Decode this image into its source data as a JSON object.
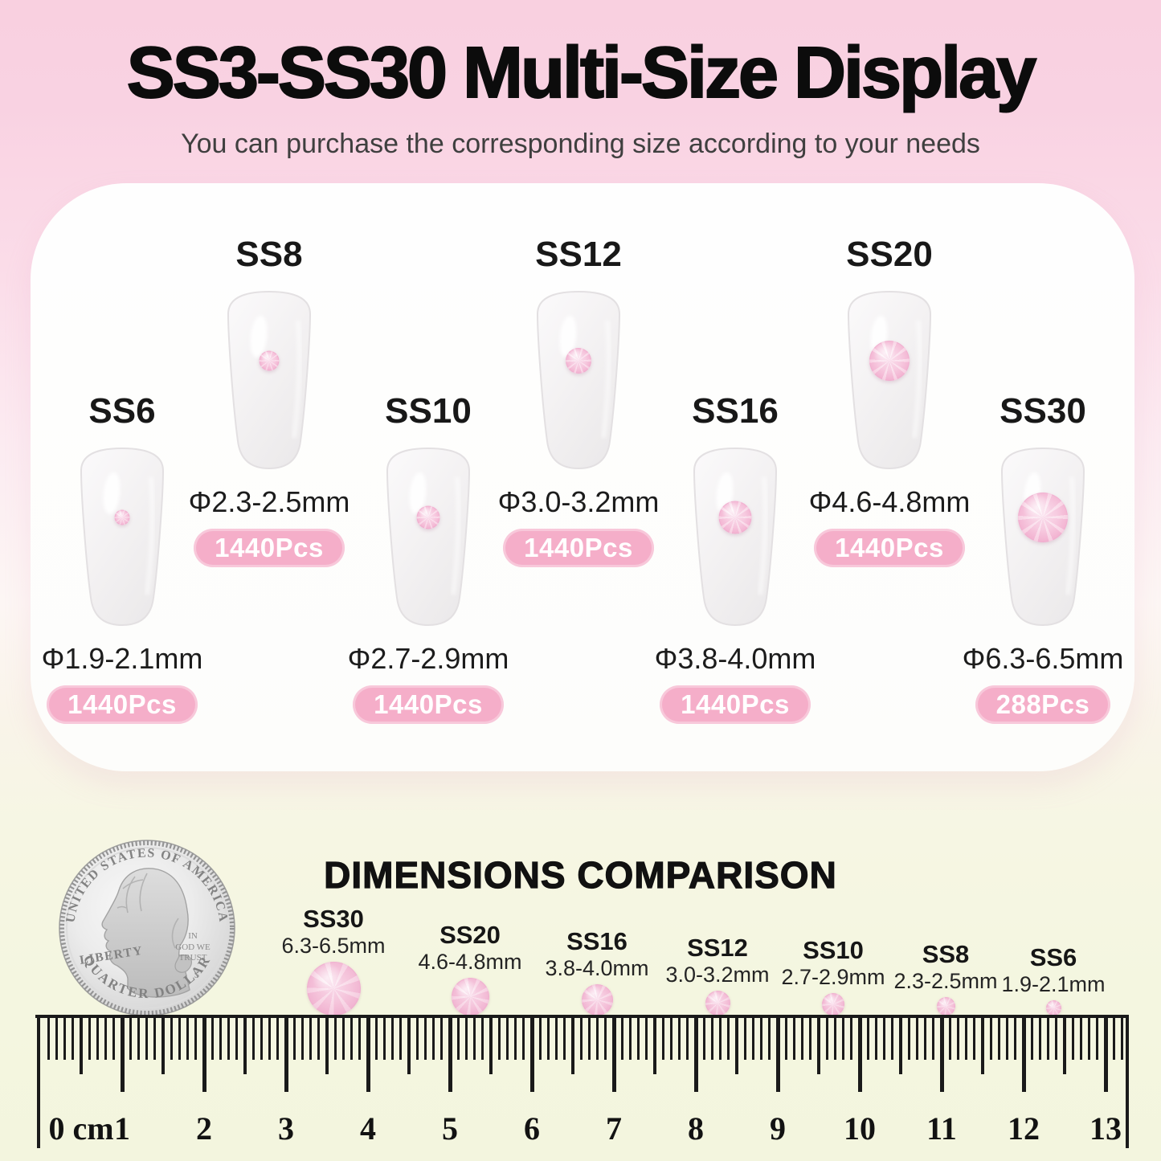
{
  "header": {
    "title": "SS3-SS30 Multi-Size Display",
    "subtitle": "You can purchase the corresponding size according to your needs"
  },
  "display": {
    "nails": [
      {
        "label": "SS6",
        "diameter": "Φ1.9-2.1mm",
        "count": "1440Pcs"
      },
      {
        "label": "SS8",
        "diameter": "Φ2.3-2.5mm",
        "count": "1440Pcs"
      },
      {
        "label": "SS10",
        "diameter": "Φ2.7-2.9mm",
        "count": "1440Pcs"
      },
      {
        "label": "SS12",
        "diameter": "Φ3.0-3.2mm",
        "count": "1440Pcs"
      },
      {
        "label": "SS16",
        "diameter": "Φ3.8-4.0mm",
        "count": "1440Pcs"
      },
      {
        "label": "SS20",
        "diameter": "Φ4.6-4.8mm",
        "count": "1440Pcs"
      },
      {
        "label": "SS30",
        "diameter": "Φ6.3-6.5mm",
        "count": "288Pcs"
      }
    ]
  },
  "comparison": {
    "title": "DIMENSIONS COMPARISON",
    "items": [
      {
        "label": "SS30",
        "size": "6.3-6.5mm"
      },
      {
        "label": "SS20",
        "size": "4.6-4.8mm"
      },
      {
        "label": "SS16",
        "size": "3.8-4.0mm"
      },
      {
        "label": "SS12",
        "size": "3.0-3.2mm"
      },
      {
        "label": "SS10",
        "size": "2.7-2.9mm"
      },
      {
        "label": "SS8",
        "size": "2.3-2.5mm"
      },
      {
        "label": "SS6",
        "size": "1.9-2.1mm"
      }
    ],
    "coin": {
      "top_text": "UNITED STATES OF AMERICA",
      "bottom_text": "QUARTER DOLLAR",
      "liberty": "LIBERTY",
      "motto": [
        "IN",
        "GOD WE",
        "TRUST"
      ],
      "mint_mark": "S"
    }
  },
  "ruler": {
    "numbers": [
      "0 cm",
      "1",
      "2",
      "3",
      "4",
      "5",
      "6",
      "7",
      "8",
      "9",
      "10",
      "11",
      "12",
      "13"
    ]
  },
  "colors": {
    "accent_pink": "#f5aec9",
    "gem_pink": "#f3b5d2",
    "badge_text": "#ffffff",
    "bg_top_pink": "#f9d0e0",
    "bg_bottom_cream": "#f4f6e0",
    "title_black": "#0c0c0c"
  }
}
